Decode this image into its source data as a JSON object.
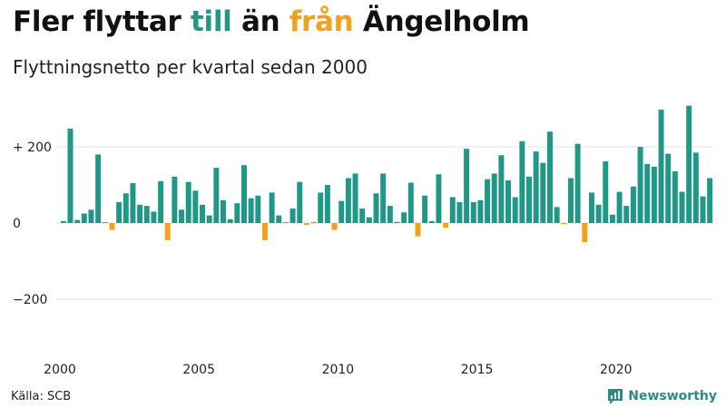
{
  "header": {
    "title_parts": [
      "Fler flyttar ",
      "till",
      " än ",
      "från",
      " Ängelholm"
    ],
    "subtitle": "Flyttningsnetto per kvartal sedan 2000"
  },
  "footer": {
    "source": "Källa: SCB",
    "brand": "Newsworthy"
  },
  "colors": {
    "positive": "#1f9887",
    "negative": "#f3a01c",
    "title_till": "#1f9887",
    "title_fran": "#f3a01c",
    "brand": "#2a8c7e"
  },
  "chart_data": {
    "type": "bar",
    "title": "Fler flyttar till än från Ängelholm",
    "subtitle": "Flyttningsnetto per kvartal sedan 2000",
    "x_start": "2000 Q1",
    "x_tick_labels": [
      "2000",
      "2005",
      "2010",
      "2015",
      "2020"
    ],
    "y_tick_labels": [
      "+ 200",
      "0",
      "−200"
    ],
    "y_ticks": [
      200,
      0,
      -200
    ],
    "ylim": [
      -330,
      330
    ],
    "grid": true,
    "values": [
      5,
      248,
      8,
      25,
      35,
      180,
      0,
      -18,
      55,
      78,
      105,
      48,
      45,
      30,
      110,
      -45,
      122,
      35,
      108,
      85,
      48,
      20,
      145,
      60,
      10,
      52,
      152,
      65,
      72,
      -45,
      80,
      20,
      0,
      38,
      108,
      -5,
      0,
      80,
      100,
      -18,
      58,
      118,
      130,
      38,
      15,
      78,
      130,
      45,
      3,
      28,
      106,
      -35,
      72,
      5,
      128,
      -12,
      68,
      55,
      195,
      55,
      60,
      115,
      130,
      178,
      112,
      68,
      215,
      122,
      188,
      158,
      240,
      42,
      -3,
      118,
      208,
      -50,
      80,
      48,
      162,
      22,
      82,
      45,
      96,
      200,
      155,
      148,
      298,
      182,
      136,
      82,
      308,
      185,
      70,
      118
    ]
  }
}
